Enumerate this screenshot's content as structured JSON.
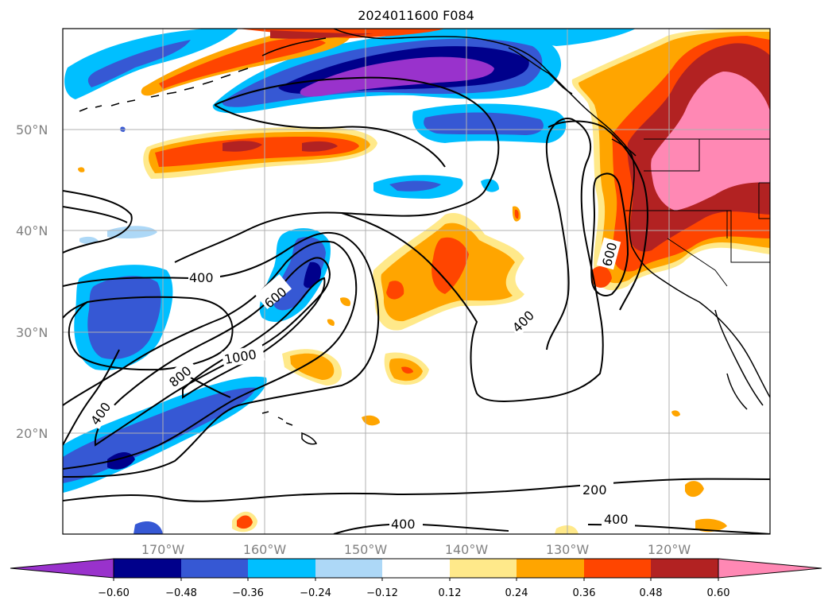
{
  "title": "2024011600 F084",
  "latitude_labels": [
    "50°N",
    "40°N",
    "30°N",
    "20°N"
  ],
  "longitude_labels": [
    "170°W",
    "160°W",
    "150°W",
    "140°W",
    "130°W",
    "120°W"
  ],
  "colorbar": {
    "labels": [
      "−0.60",
      "−0.48",
      "−0.36",
      "−0.24",
      "−0.12",
      "0.12",
      "0.24",
      "0.36",
      "0.48",
      "0.60"
    ],
    "colors": {
      "under": "#9932cc",
      "bins": [
        "#9932cc",
        "#00008b",
        "#3658d4",
        "#00bfff",
        "#add8f7",
        "#ffffff",
        "#ffe98a",
        "#ffa500",
        "#ff4500",
        "#b22222",
        "#ff88b4"
      ],
      "over": "#ff88b4"
    }
  },
  "contour_labels": [
    "400",
    "600",
    "1000",
    "800",
    "400",
    "400",
    "600",
    "200",
    "400",
    "400"
  ],
  "colors": {
    "gridline": "#b0b0b0",
    "contour": "#000000",
    "axis_label": "#808080"
  }
}
